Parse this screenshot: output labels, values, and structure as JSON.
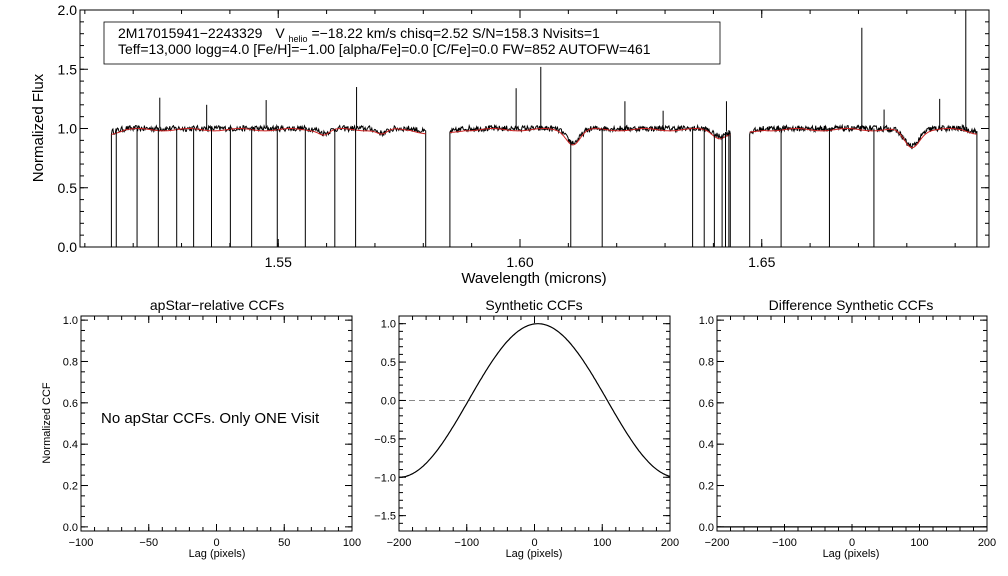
{
  "chart_data": [
    {
      "type": "line",
      "id": "spectrum",
      "title_line1_parts": [
        "2M17015941−2243329",
        "V",
        "helio",
        "=−18.22 km/s  chisq=2.52  S/N=158.3  Nvisits=1"
      ],
      "title_line2": "Teff=13,000 logg=4.0 [Fe/H]=−1.00 [alpha/Fe]=0.0 [C/Fe]=0.0 FW=852 AUTOFW=461",
      "xlabel": "Wavelength (microns)",
      "ylabel": "Normalized Flux",
      "xlim": [
        1.509,
        1.697
      ],
      "ylim": [
        0.0,
        2.0
      ],
      "xticks": [
        {
          "value": 1.55,
          "label": "1.55"
        },
        {
          "value": 1.6,
          "label": "1.60"
        },
        {
          "value": 1.65,
          "label": "1.65"
        }
      ],
      "yticks": [
        {
          "value": 0.0,
          "label": "0.0"
        },
        {
          "value": 0.5,
          "label": "0.5"
        },
        {
          "value": 1.0,
          "label": "1.0"
        },
        {
          "value": 1.5,
          "label": "1.5"
        },
        {
          "value": 2.0,
          "label": "2.0"
        }
      ],
      "chips": [
        [
          1.5155,
          1.5805
        ],
        [
          1.5855,
          1.6435
        ],
        [
          1.6475,
          1.6945
        ]
      ],
      "series": [
        {
          "name": "observed",
          "color": "#000000"
        },
        {
          "name": "model",
          "color": "#cc2222"
        }
      ],
      "absorption_features": [
        {
          "center": 1.5595,
          "depth": 0.04,
          "width": 0.0015
        },
        {
          "center": 1.5715,
          "depth": 0.04,
          "width": 0.0015
        },
        {
          "center": 1.611,
          "depth": 0.12,
          "width": 0.002
        },
        {
          "center": 1.641,
          "depth": 0.06,
          "width": 0.0018
        },
        {
          "center": 1.681,
          "depth": 0.15,
          "width": 0.0022
        }
      ],
      "emission_spikes": [
        [
          1.5255,
          1.26
        ],
        [
          1.5352,
          1.2
        ],
        [
          1.5475,
          1.24
        ],
        [
          1.5662,
          1.35
        ],
        [
          1.5992,
          1.34
        ],
        [
          1.6043,
          1.52
        ],
        [
          1.6217,
          1.23
        ],
        [
          1.6296,
          1.15
        ],
        [
          1.6427,
          1.23
        ],
        [
          1.6707,
          1.85
        ],
        [
          1.6753,
          1.16
        ],
        [
          1.6868,
          1.25
        ],
        [
          1.6922,
          2.0
        ]
      ],
      "drop_lines": [
        1.5165,
        1.5208,
        1.5252,
        1.529,
        1.5325,
        1.5362,
        1.5401,
        1.5445,
        1.5498,
        1.5556,
        1.5617,
        1.566,
        1.6105,
        1.617,
        1.6357,
        1.6381,
        1.6402,
        1.6418,
        1.6425,
        1.6432,
        1.654,
        1.664,
        1.6732
      ]
    },
    {
      "type": "line",
      "id": "apstar-ccf",
      "title": "apStar−relative CCFs",
      "xlabel": "Lag (pixels)",
      "ylabel": "Normalized CCF",
      "xlim": [
        -100,
        100
      ],
      "ylim": [
        -0.02,
        1.02
      ],
      "xticks": [
        {
          "value": -100,
          "label": "−100"
        },
        {
          "value": -50,
          "label": "−50"
        },
        {
          "value": 0,
          "label": "0"
        },
        {
          "value": 50,
          "label": "50"
        },
        {
          "value": 100,
          "label": "100"
        }
      ],
      "yticks": [
        {
          "value": 0.0,
          "label": "0.0"
        },
        {
          "value": 0.2,
          "label": "0.2"
        },
        {
          "value": 0.4,
          "label": "0.4"
        },
        {
          "value": 0.6,
          "label": "0.6"
        },
        {
          "value": 0.8,
          "label": "0.8"
        },
        {
          "value": 1.0,
          "label": "1.0"
        }
      ],
      "message": "No apStar CCFs.  Only ONE Visit"
    },
    {
      "type": "line",
      "id": "synthetic-ccf",
      "title": "Synthetic CCFs",
      "xlabel": "Lag (pixels)",
      "xlim": [
        -200,
        200
      ],
      "ylim": [
        -1.7,
        1.1
      ],
      "xticks": [
        {
          "value": -200,
          "label": "−200"
        },
        {
          "value": -100,
          "label": "−100"
        },
        {
          "value": 0,
          "label": "0"
        },
        {
          "value": 100,
          "label": "100"
        },
        {
          "value": 200,
          "label": "200"
        }
      ],
      "yticks": [
        {
          "value": -1.5,
          "label": "−1.5"
        },
        {
          "value": -1.0,
          "label": "−1.0"
        },
        {
          "value": -0.5,
          "label": "−0.5"
        },
        {
          "value": 0.0,
          "label": "0.0"
        },
        {
          "value": 0.5,
          "label": "0.5"
        },
        {
          "value": 1.0,
          "label": "1.0"
        }
      ],
      "curve": {
        "peak_lag": 5,
        "zero_crossings": [
          -100,
          105
        ]
      },
      "reference_line": 0.0
    },
    {
      "type": "line",
      "id": "difference-ccf",
      "title": "Difference Synthetic CCFs",
      "xlabel": "Lag (pixels)",
      "xlim": [
        -200,
        200
      ],
      "ylim": [
        -0.02,
        1.02
      ],
      "xticks": [
        {
          "value": -200,
          "label": "−200"
        },
        {
          "value": -100,
          "label": "−100"
        },
        {
          "value": 0,
          "label": "0"
        },
        {
          "value": 100,
          "label": "100"
        },
        {
          "value": 200,
          "label": "200"
        }
      ],
      "yticks": [
        {
          "value": 0.0,
          "label": "0.0"
        },
        {
          "value": 0.2,
          "label": "0.2"
        },
        {
          "value": 0.4,
          "label": "0.4"
        },
        {
          "value": 0.6,
          "label": "0.6"
        },
        {
          "value": 0.8,
          "label": "0.8"
        },
        {
          "value": 1.0,
          "label": "1.0"
        }
      ],
      "curve_value": 0.0
    }
  ]
}
